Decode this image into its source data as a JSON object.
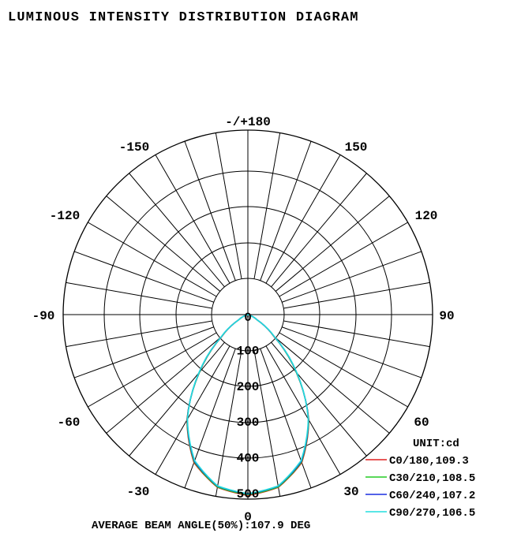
{
  "chart_data": {
    "type": "polar",
    "title": "LUMINOUS INTENSITY DISTRIBUTION DIAGRAM",
    "unit_label": "UNIT:cd",
    "angle_labels": [
      {
        "text": "-/+180",
        "angle": 180
      },
      {
        "text": "150",
        "angle": 150
      },
      {
        "text": "-150",
        "angle": -150
      },
      {
        "text": "120",
        "angle": 120
      },
      {
        "text": "-120",
        "angle": -120
      },
      {
        "text": "90",
        "angle": 90
      },
      {
        "text": "-90",
        "angle": -90
      },
      {
        "text": "60",
        "angle": 60
      },
      {
        "text": "-60",
        "angle": -60
      },
      {
        "text": "30",
        "angle": 30
      },
      {
        "text": "-30",
        "angle": -30
      },
      {
        "text": "0",
        "angle": 0
      }
    ],
    "radial_tick_labels": [
      "0",
      "100",
      "200",
      "300",
      "400",
      "500"
    ],
    "radial_max": 500,
    "angle_step_deg": 10,
    "grid": true,
    "legend_position": "bottom-right",
    "series": [
      {
        "name": "C0/180,109.3",
        "color": "#e02020",
        "angles": [
          -90,
          -80,
          -70,
          -60,
          -50,
          -40,
          -30,
          -20,
          -10,
          0,
          10,
          20,
          30,
          40,
          50,
          60,
          70,
          80,
          90
        ],
        "values": [
          0,
          2,
          8,
          30,
          95,
          210,
          340,
          440,
          490,
          505,
          490,
          440,
          340,
          210,
          95,
          30,
          8,
          2,
          0
        ]
      },
      {
        "name": "C30/210,108.5",
        "color": "#22cc22",
        "angles": [
          -90,
          -80,
          -70,
          -60,
          -50,
          -40,
          -30,
          -20,
          -10,
          0,
          10,
          20,
          30,
          40,
          50,
          60,
          70,
          80,
          90
        ],
        "values": [
          0,
          2,
          8,
          30,
          96,
          210,
          339,
          438,
          489,
          503,
          489,
          438,
          339,
          210,
          96,
          30,
          8,
          2,
          0
        ]
      },
      {
        "name": "C60/240,107.2",
        "color": "#1a2ee0",
        "angles": [
          -90,
          -80,
          -70,
          -60,
          -50,
          -40,
          -30,
          -20,
          -10,
          0,
          10,
          20,
          30,
          40,
          50,
          60,
          70,
          80,
          90
        ],
        "values": [
          0,
          2,
          8,
          31,
          97,
          212,
          338,
          436,
          487,
          501,
          487,
          436,
          338,
          212,
          97,
          31,
          8,
          2,
          0
        ]
      },
      {
        "name": "C90/270,106.5",
        "color": "#22dddd",
        "angles": [
          -90,
          -80,
          -70,
          -60,
          -50,
          -40,
          -30,
          -20,
          -10,
          0,
          10,
          20,
          30,
          40,
          50,
          60,
          70,
          80,
          90
        ],
        "values": [
          0,
          2,
          8,
          31,
          98,
          213,
          337,
          434,
          486,
          500,
          486,
          434,
          337,
          213,
          98,
          31,
          8,
          2,
          0
        ]
      }
    ],
    "footer": "AVERAGE BEAM ANGLE(50%):107.9 DEG"
  }
}
